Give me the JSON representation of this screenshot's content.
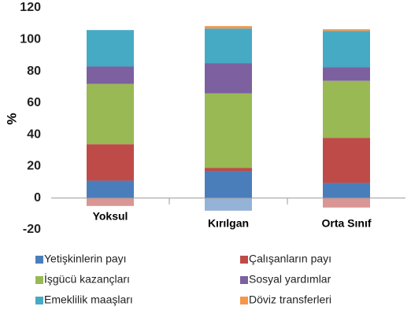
{
  "chart_data": {
    "type": "stacked_bar",
    "ylabel": "%",
    "categories": [
      "Yoksul",
      "Kırılgan",
      "Orta Sınıf"
    ],
    "ylim": [
      -20,
      120
    ],
    "yticks": [
      -20,
      0,
      20,
      40,
      60,
      80,
      100,
      120
    ],
    "grid": false,
    "series": [
      {
        "name": "Yetişkinlerin payı",
        "color": "#4a7ebb",
        "negative_color": "#95b3d7",
        "values": [
          11,
          17,
          9.5
        ],
        "negative_values": [
          0,
          -8,
          0
        ]
      },
      {
        "name": "Çalışanların payı",
        "color": "#be4b48",
        "negative_color": "#d99694",
        "values": [
          23,
          2,
          28.5
        ],
        "negative_values": [
          -5,
          0,
          -6
        ]
      },
      {
        "name": "İşgücü kazançları",
        "color": "#98b954",
        "values": [
          38,
          47,
          36
        ]
      },
      {
        "name": "Sosyal yardımlar",
        "color": "#7d60a0",
        "values": [
          11,
          19,
          8.5
        ]
      },
      {
        "name": "Emeklilik maaşları",
        "color": "#46aac5",
        "values": [
          23,
          22,
          23
        ]
      },
      {
        "name": "Döviz transferleri",
        "color": "#f79646",
        "values": [
          0,
          1.5,
          1
        ]
      }
    ]
  }
}
